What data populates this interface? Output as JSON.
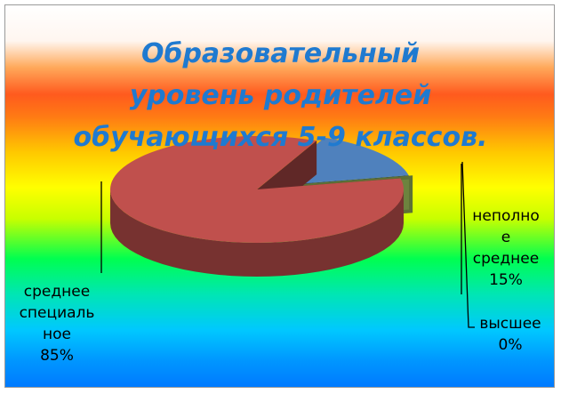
{
  "chart_data": {
    "type": "pie",
    "title_lines": [
      "Образовательный",
      "уровень родителей",
      "обучающихся 5-9 классов."
    ],
    "slices": [
      {
        "label_lines": [
          "среднее",
          "специаль",
          "ное"
        ],
        "percent_label": "85%",
        "value": 85,
        "color": "#c0504d"
      },
      {
        "label_lines": [
          "неполно",
          "е",
          "среднее"
        ],
        "percent_label": "15%",
        "value": 15,
        "color": "#4f81bd"
      },
      {
        "label_lines": [
          "высшее"
        ],
        "percent_label": "0%",
        "value": 0,
        "color": "#9bbb59"
      }
    ]
  }
}
